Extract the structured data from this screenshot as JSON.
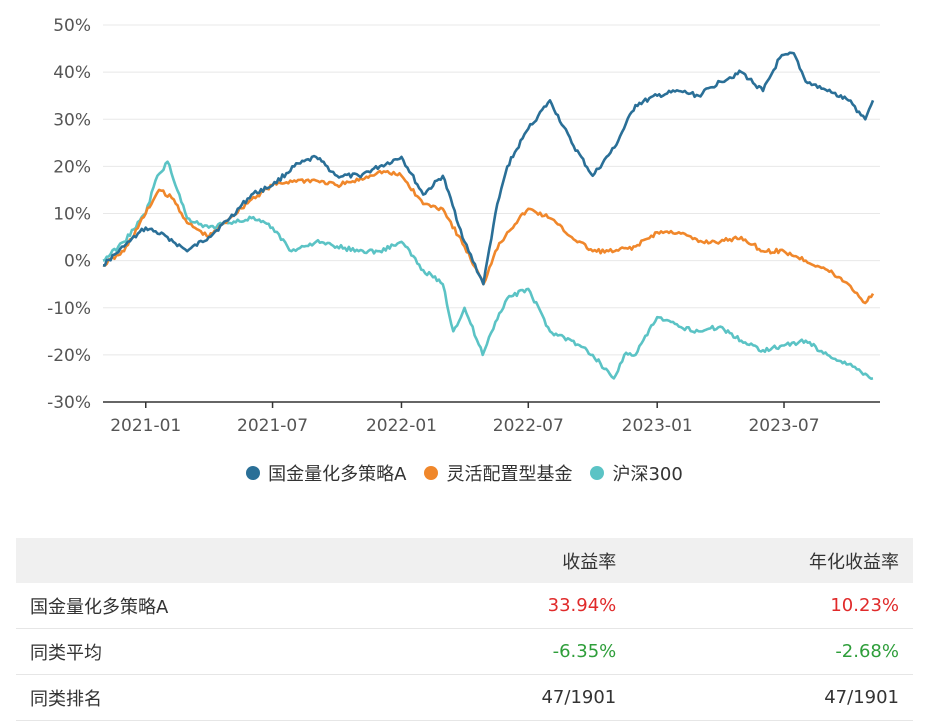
{
  "chart_data": {
    "type": "line",
    "yunit": "%",
    "ylim": [
      -30,
      50
    ],
    "yticks": [
      50,
      40,
      30,
      20,
      10,
      0,
      -10,
      -20,
      -30
    ],
    "ytick_labels": [
      "50%",
      "40%",
      "30%",
      "20%",
      "10%",
      "0%",
      "-10%",
      "-20%",
      "-30%"
    ],
    "xlim": [
      "2020-11-01",
      "2023-11-15"
    ],
    "xticks": [
      "2021-01-01",
      "2021-07-01",
      "2022-01-01",
      "2022-07-01",
      "2023-01-01",
      "2023-07-01"
    ],
    "xtick_labels": [
      "2021-01",
      "2021-07",
      "2022-01",
      "2022-07",
      "2023-01",
      "2023-07"
    ],
    "grid": "horizontal",
    "legend_position": "bottom",
    "series": [
      {
        "name": "国金量化多策略A",
        "color": "#2a6f97",
        "x": [
          "2020-11-01",
          "2020-12-01",
          "2021-01-01",
          "2021-02-01",
          "2021-03-01",
          "2021-04-01",
          "2021-05-01",
          "2021-06-01",
          "2021-07-01",
          "2021-08-01",
          "2021-09-01",
          "2021-10-01",
          "2021-11-01",
          "2021-12-01",
          "2022-01-01",
          "2022-02-01",
          "2022-03-01",
          "2022-04-01",
          "2022-04-28",
          "2022-05-15",
          "2022-06-01",
          "2022-07-01",
          "2022-08-01",
          "2022-09-01",
          "2022-10-01",
          "2022-11-01",
          "2022-12-01",
          "2023-01-01",
          "2023-02-01",
          "2023-03-01",
          "2023-04-01",
          "2023-05-01",
          "2023-06-01",
          "2023-06-25",
          "2023-07-15",
          "2023-08-01",
          "2023-09-01",
          "2023-10-01",
          "2023-10-25",
          "2023-11-05"
        ],
        "values": [
          -1,
          3,
          7,
          5,
          2,
          5,
          9,
          14,
          16,
          20,
          22,
          18,
          18,
          20,
          22,
          14,
          18,
          4,
          -5,
          10,
          20,
          28,
          34,
          25,
          18,
          24,
          33,
          35,
          36,
          35,
          38,
          40,
          36,
          43,
          44,
          38,
          36,
          34,
          30,
          34
        ]
      },
      {
        "name": "灵活配置型基金",
        "color": "#f0872b",
        "x": [
          "2020-11-01",
          "2020-12-01",
          "2021-01-01",
          "2021-01-20",
          "2021-02-10",
          "2021-03-01",
          "2021-04-01",
          "2021-05-01",
          "2021-06-01",
          "2021-07-01",
          "2021-08-01",
          "2021-09-01",
          "2021-10-01",
          "2021-11-01",
          "2021-12-01",
          "2022-01-01",
          "2022-02-01",
          "2022-03-01",
          "2022-04-01",
          "2022-04-28",
          "2022-05-15",
          "2022-06-01",
          "2022-07-01",
          "2022-08-01",
          "2022-09-01",
          "2022-10-01",
          "2022-11-01",
          "2022-12-01",
          "2023-01-01",
          "2023-02-01",
          "2023-03-01",
          "2023-04-01",
          "2023-05-01",
          "2023-06-01",
          "2023-07-01",
          "2023-08-01",
          "2023-09-01",
          "2023-10-01",
          "2023-10-25",
          "2023-11-05"
        ],
        "values": [
          -1,
          2,
          10,
          15,
          13,
          8,
          5,
          9,
          13,
          16,
          17,
          17,
          16,
          17,
          19,
          18,
          12,
          11,
          3,
          -5,
          2,
          6,
          11,
          9,
          5,
          2,
          2,
          3,
          6,
          6,
          4,
          4,
          5,
          2,
          2,
          0,
          -2,
          -5,
          -9,
          -7
        ]
      },
      {
        "name": "沪深300",
        "color": "#5bc3c5",
        "x": [
          "2020-11-01",
          "2020-12-01",
          "2021-01-01",
          "2021-01-15",
          "2021-02-01",
          "2021-02-18",
          "2021-03-01",
          "2021-04-01",
          "2021-05-01",
          "2021-06-01",
          "2021-07-01",
          "2021-07-28",
          "2021-08-15",
          "2021-09-01",
          "2021-10-01",
          "2021-11-01",
          "2021-12-01",
          "2022-01-01",
          "2022-02-01",
          "2022-03-01",
          "2022-03-16",
          "2022-04-01",
          "2022-04-27",
          "2022-05-15",
          "2022-06-01",
          "2022-07-01",
          "2022-08-01",
          "2022-09-01",
          "2022-10-01",
          "2022-10-31",
          "2022-11-15",
          "2022-12-01",
          "2023-01-01",
          "2023-02-01",
          "2023-03-01",
          "2023-04-01",
          "2023-05-01",
          "2023-06-01",
          "2023-07-01",
          "2023-08-01",
          "2023-09-01",
          "2023-10-01",
          "2023-10-25",
          "2023-11-05"
        ],
        "values": [
          0,
          4,
          10,
          17,
          21,
          14,
          9,
          7,
          8,
          9,
          7,
          2,
          3,
          4,
          3,
          2,
          2,
          4,
          -2,
          -5,
          -15,
          -10,
          -20,
          -13,
          -8,
          -6,
          -15,
          -17,
          -20,
          -25,
          -20,
          -20,
          -12,
          -14,
          -15,
          -14,
          -17,
          -19,
          -18,
          -17,
          -20,
          -22,
          -24,
          -25
        ]
      }
    ]
  },
  "table": {
    "headers": [
      "",
      "收益率",
      "年化收益率"
    ],
    "rows": [
      {
        "name": "国金量化多策略A",
        "ret": "33.94%",
        "annual": "10.23%",
        "sign": "pos"
      },
      {
        "name": "同类平均",
        "ret": "-6.35%",
        "annual": "-2.68%",
        "sign": "neg"
      },
      {
        "name": "同类排名",
        "ret": "47/1901",
        "annual": "47/1901",
        "sign": "none"
      }
    ]
  }
}
